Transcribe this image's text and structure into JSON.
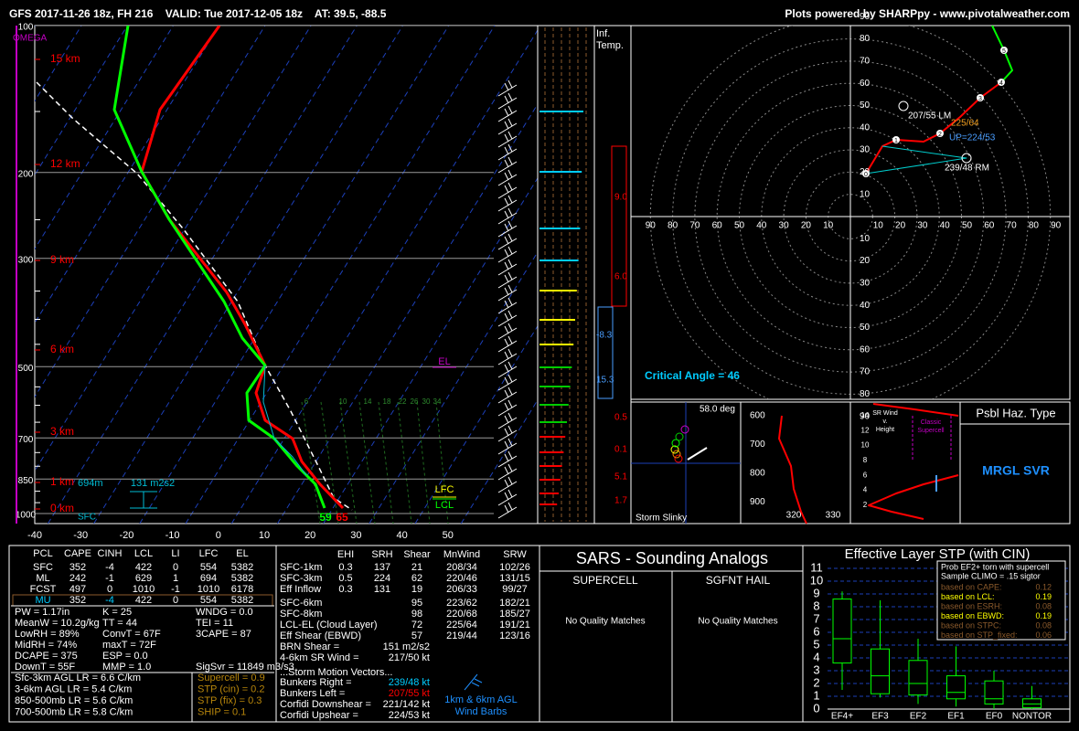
{
  "header": {
    "title": "GFS 2017-11-26 18z, FH 216    VALID: Tue 2017-12-05 18z    AT: 39.5, -88.5",
    "credit": "Plots powered by SHARPpy - www.pivotalweather.com"
  },
  "skewt": {
    "omega": "OMEGA",
    "pressure_labels": [
      "100",
      "200",
      "300",
      "500",
      "700",
      "850",
      "1000"
    ],
    "temperature_labels": [
      "-40",
      "-30",
      "-20",
      "-10",
      "0",
      "10",
      "20",
      "30",
      "40",
      "50"
    ],
    "height_labels": [
      "15 km",
      "12 km",
      "9 km",
      "6 km",
      "3 km",
      "1 km",
      "0 km"
    ],
    "mixing_ratio_labels": [
      "6",
      "10",
      "14",
      "18",
      "22",
      "26",
      "30",
      "34"
    ],
    "sfc_height": "694m",
    "effective_srh": "131 m2s2",
    "sfc": "SFC",
    "el": "EL",
    "lfc": "LFC",
    "lcl": "LCL",
    "sfc_dewpoint": "59",
    "sfc_temperature": "65"
  },
  "inferred_temperature": {
    "title_lines": [
      "Inf.",
      "Temp."
    ],
    "values": [
      "9.0",
      "6.0",
      "-8.3",
      "15.3",
      "0.5",
      "0.1",
      "5.1",
      "1.7"
    ]
  },
  "hodograph": {
    "ticks": [
      "10",
      "20",
      "30",
      "40",
      "50",
      "60",
      "70",
      "80",
      "90"
    ],
    "points": [
      "0",
      "1",
      "2",
      "3",
      "4",
      "5"
    ],
    "left_mover": "207/55 LM",
    "cloud_layer_mean": "225/64",
    "upshear": "UP=224/53",
    "right_mover": "239/48 RM",
    "critical_angle": "Critical Angle = 46"
  },
  "slinky": {
    "angle": "58.0 deg",
    "title": "Storm Slinky"
  },
  "theta_e": {
    "pressure_labels": [
      "600",
      "700",
      "800",
      "900"
    ],
    "theta_labels": [
      "320",
      "330"
    ]
  },
  "sr_wind": {
    "title_lines": [
      "SR Wind",
      "v.",
      "Height"
    ],
    "height_labels": [
      "14",
      "12",
      "10",
      "8",
      "6",
      "4",
      "2"
    ],
    "classic_supercell": [
      "Classic",
      "Supercell"
    ]
  },
  "hazard": {
    "title": "Psbl Haz. Type",
    "type": "MRGL SVR"
  },
  "parcels": {
    "columns": [
      "PCL",
      "CAPE",
      "CINH",
      "LCL",
      "LI",
      "LFC",
      "EL"
    ],
    "rows": [
      [
        "SFC",
        "352",
        "-4",
        "422",
        "0",
        "554",
        "5382"
      ],
      [
        "ML",
        "242",
        "-1",
        "629",
        "1",
        "694",
        "5382"
      ],
      [
        "FCST",
        "497",
        "0",
        "1010",
        "-1",
        "1010",
        "6178"
      ],
      [
        "MU",
        "352",
        "-4",
        "422",
        "0",
        "554",
        "5382"
      ]
    ]
  },
  "indices": {
    "col1": [
      "PW = 1.17in",
      "MeanW = 10.2g/kg",
      "LowRH = 89%",
      "MidRH = 74%",
      "DCAPE = 375",
      "DownT = 55F"
    ],
    "col2": [
      "K = 25",
      "TT = 44",
      "ConvT = 67F",
      "maxT = 72F",
      "ESP = 0.0",
      "MMP = 1.0"
    ],
    "col3": [
      "WNDG = 0.0",
      "TEI = 11",
      "3CAPE = 87"
    ],
    "sigsvr": "SigSvr = 11849 m3/s3"
  },
  "lapse_rates": [
    "Sfc-3km AGL LR = 6.6 C/km",
    "3-6km AGL LR = 5.4 C/km",
    "850-500mb LR = 5.6 C/km",
    "700-500mb LR = 5.8 C/km"
  ],
  "severe_params": [
    "Supercell = 0.9",
    "STP (cin) = 0.2",
    "STP (fix) = 0.3",
    "SHIP = 0.1"
  ],
  "kinematics": {
    "columns": [
      "EHI",
      "SRH",
      "Shear",
      "MnWind",
      "SRW"
    ],
    "rows": [
      [
        "SFC-1km",
        "0.3",
        "137",
        "21",
        "208/34",
        "102/26"
      ],
      [
        "SFC-3km",
        "0.5",
        "224",
        "62",
        "220/46",
        "131/15"
      ],
      [
        "Eff Inflow",
        "0.3",
        "131",
        "19",
        "206/33",
        "99/27"
      ]
    ],
    "deep_rows": [
      [
        "SFC-6km",
        "95",
        "223/62",
        "182/21"
      ],
      [
        "SFC-8km",
        "98",
        "220/68",
        "185/27"
      ],
      [
        "LCL-EL (Cloud Layer)",
        "72",
        "225/64",
        "191/21"
      ],
      [
        "Eff Shear (EBWD)",
        "57",
        "219/44",
        "123/16"
      ]
    ],
    "summary": [
      [
        "BRN Shear =",
        "151 m2/s2"
      ],
      [
        "4-6km SR Wind =",
        "217/50 kt"
      ]
    ],
    "storm_motion_title": "...Storm Motion Vectors...",
    "storm_motion": [
      [
        "Bunkers Right =",
        "239/48 kt"
      ],
      [
        "Bunkers Left =",
        "207/55 kt"
      ],
      [
        "Corfidi Downshear =",
        "221/142 kt"
      ],
      [
        "Corfidi Upshear =",
        "224/53 kt"
      ]
    ],
    "barb_caption": [
      "1km & 6km AGL",
      "Wind Barbs"
    ]
  },
  "sars": {
    "title": "SARS - Sounding Analogs",
    "supercell": "SUPERCELL",
    "hail": "SGFNT HAIL",
    "supercell_result": "No Quality Matches",
    "hail_result": "No Quality Matches"
  },
  "stp": {
    "title": "Effective Layer STP (with CIN)",
    "yticks": [
      "0",
      "1",
      "2",
      "3",
      "4",
      "5",
      "6",
      "7",
      "8",
      "9",
      "10",
      "11"
    ],
    "categories": [
      "EF4+",
      "EF3",
      "EF2",
      "EF1",
      "EF0",
      "NONTOR"
    ],
    "legend_title": [
      "Prob EF2+ torn with supercell",
      "Sample CLIMO = .15 sigtor"
    ],
    "legend_rows": [
      [
        "based on CAPE:",
        "0.12"
      ],
      [
        "based on LCL:",
        "0.19"
      ],
      [
        "based on ESRH:",
        "0.08"
      ],
      [
        "based on EBWD:",
        "0.19"
      ],
      [
        "based on STPC:",
        "0.08"
      ],
      [
        "based on STP_fixed:",
        "0.06"
      ]
    ]
  }
}
